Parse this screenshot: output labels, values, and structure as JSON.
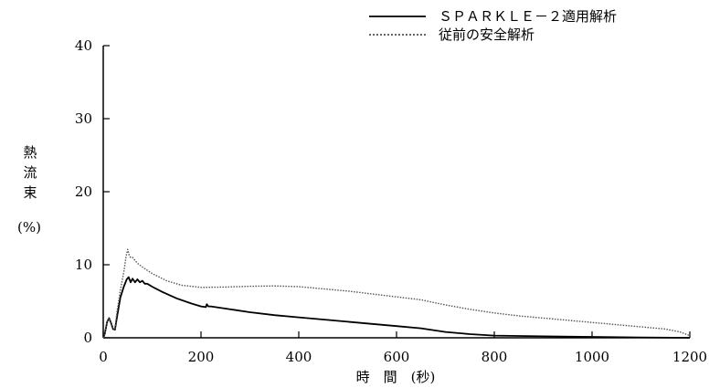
{
  "chart_data": {
    "type": "line",
    "xlabel": "時　間　(秒)",
    "ylabel_lines": [
      "熱",
      "流",
      "束"
    ],
    "ylabel_unit": "(%)",
    "xlim": [
      0,
      1200
    ],
    "ylim": [
      0,
      40
    ],
    "xticks": [
      0,
      200,
      400,
      600,
      800,
      1000,
      1200
    ],
    "yticks": [
      0,
      10,
      20,
      30,
      40
    ],
    "grid": false,
    "legend_position": "top-right",
    "series": [
      {
        "name": "ＳＰＡＲＫＬＥ－２適用解析",
        "style": "solid",
        "color": "#000000",
        "x": [
          0,
          3,
          8,
          12,
          16,
          20,
          24,
          28,
          35,
          42,
          48,
          52,
          56,
          60,
          65,
          70,
          75,
          80,
          85,
          90,
          100,
          120,
          150,
          180,
          200,
          210,
          212,
          215,
          220,
          250,
          300,
          350,
          400,
          450,
          500,
          550,
          600,
          650,
          700,
          750,
          800,
          850,
          900,
          1000,
          1100,
          1200
        ],
        "y": [
          0,
          0.5,
          2.2,
          2.7,
          2.0,
          1.2,
          1.1,
          2.8,
          5.5,
          7.0,
          8.0,
          8.3,
          7.6,
          8.1,
          7.6,
          8.0,
          7.6,
          7.8,
          7.4,
          7.4,
          7.0,
          6.3,
          5.4,
          4.7,
          4.3,
          4.2,
          4.6,
          4.3,
          4.3,
          4.0,
          3.5,
          3.1,
          2.8,
          2.5,
          2.2,
          1.9,
          1.6,
          1.3,
          0.8,
          0.5,
          0.3,
          0.25,
          0.2,
          0.12,
          0.05,
          0
        ]
      },
      {
        "name": "従前の安全解析",
        "style": "dotted",
        "color": "#555555",
        "x": [
          0,
          3,
          8,
          12,
          16,
          20,
          24,
          28,
          35,
          42,
          47,
          50,
          53,
          56,
          60,
          70,
          80,
          100,
          130,
          160,
          200,
          250,
          300,
          350,
          400,
          450,
          500,
          550,
          600,
          650,
          700,
          750,
          800,
          850,
          900,
          950,
          1000,
          1050,
          1100,
          1150,
          1180,
          1200
        ],
        "y": [
          0,
          0.5,
          2.2,
          2.7,
          2.0,
          1.2,
          1.1,
          3.5,
          6.5,
          9.0,
          11.2,
          12.1,
          11.3,
          11.0,
          11.0,
          10.2,
          9.7,
          8.8,
          7.8,
          7.2,
          6.9,
          6.95,
          7.05,
          7.1,
          7.0,
          6.7,
          6.4,
          6.0,
          5.6,
          5.2,
          4.5,
          3.9,
          3.4,
          3.0,
          2.7,
          2.4,
          2.1,
          1.8,
          1.5,
          1.2,
          0.8,
          0.3
        ]
      }
    ]
  }
}
